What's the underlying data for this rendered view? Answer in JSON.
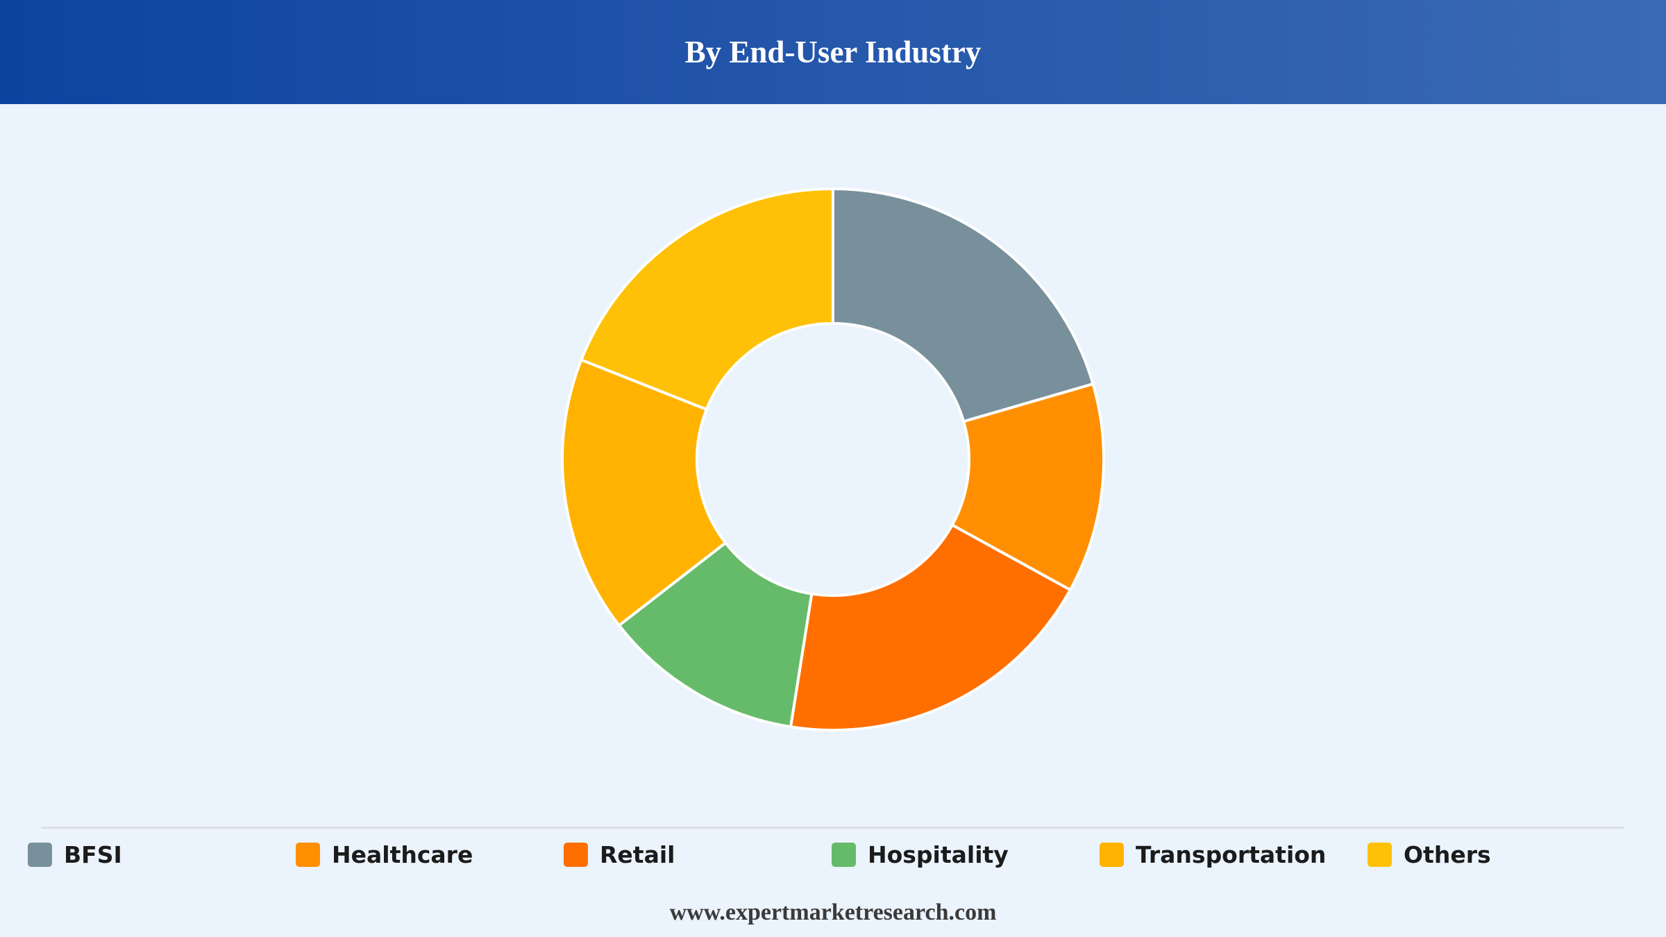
{
  "header": {
    "title": "By End-User Industry"
  },
  "chart_data": {
    "type": "pie",
    "title": "By End-User Industry",
    "donut": true,
    "legend_position": "bottom",
    "categories": [
      "BFSI",
      "Healthcare",
      "Retail",
      "Hospitality",
      "Transportation",
      "Others"
    ],
    "values": [
      20.5,
      12.5,
      19.5,
      12.0,
      16.5,
      19.0
    ],
    "colors": [
      "#78909c",
      "#ff8f00",
      "#ff6f00",
      "#66bb6a",
      "#ffb300",
      "#ffc107"
    ]
  },
  "footer": {
    "source": "www.expertmarketresearch.com"
  }
}
